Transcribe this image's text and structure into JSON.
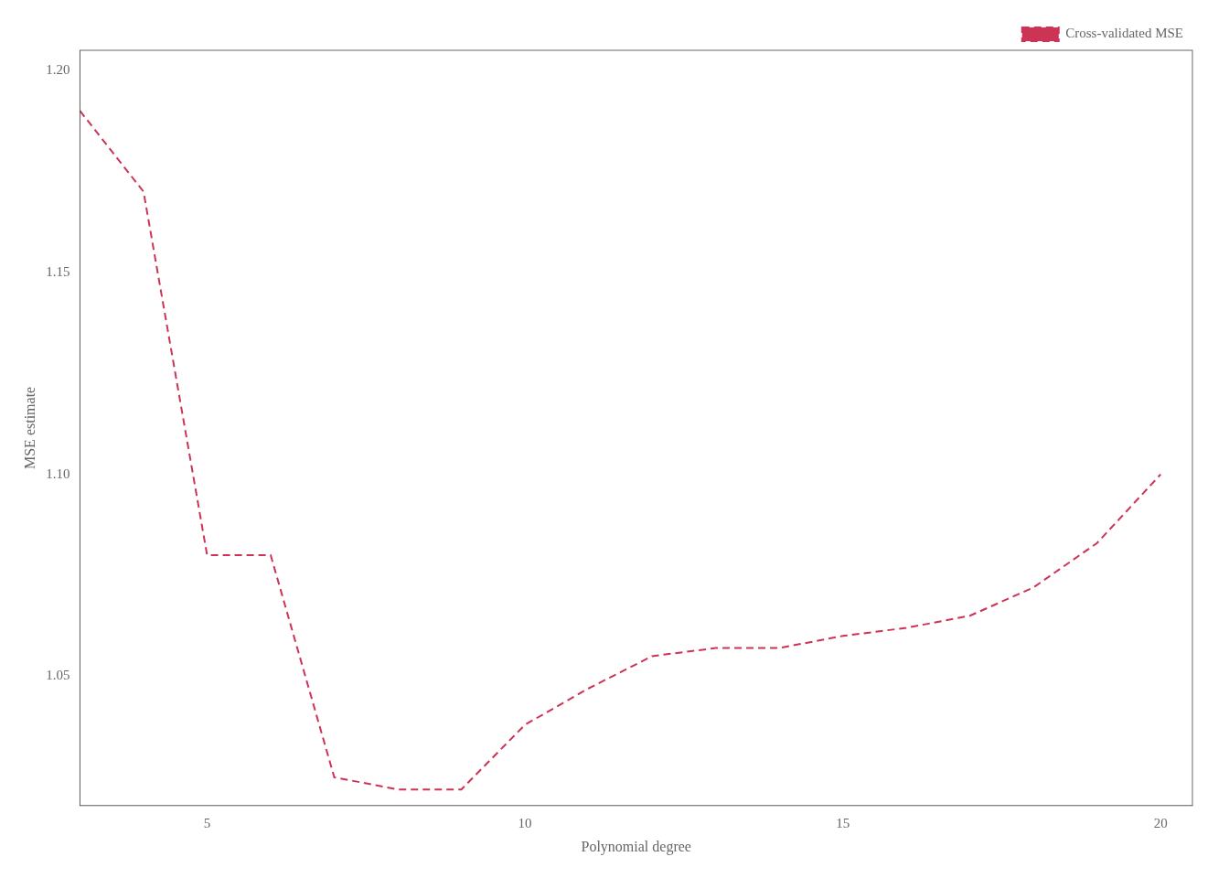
{
  "chart_data": {
    "type": "line",
    "xlabel": "Polynomial degree",
    "ylabel": "MSE estimate",
    "x": [
      3,
      4,
      5,
      6,
      7,
      8,
      9,
      10,
      11,
      12,
      13,
      14,
      15,
      16,
      17,
      18,
      19,
      20
    ],
    "series": [
      {
        "name": "Cross-validated MSE",
        "color": "#cc3355",
        "line_style": "dashed",
        "values": [
          1.19,
          1.17,
          1.08,
          1.08,
          1.025,
          1.022,
          1.022,
          1.038,
          1.047,
          1.055,
          1.057,
          1.057,
          1.06,
          1.062,
          1.065,
          1.072,
          1.083,
          1.1
        ]
      }
    ],
    "xlim": [
      3,
      20.5
    ],
    "ylim": [
      1.018,
      1.205
    ],
    "xticks": [
      5,
      10,
      15,
      20
    ],
    "yticks": [
      1.05,
      {
        "value": 1.1,
        "label": "1.10"
      },
      1.15,
      {
        "value": 1.2,
        "label": "1.20"
      }
    ],
    "grid": false,
    "legend": "upper right"
  }
}
